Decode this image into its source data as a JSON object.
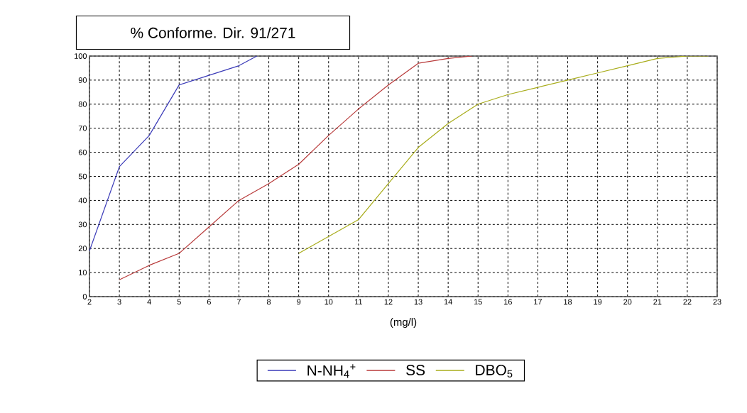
{
  "chart_data": {
    "type": "line",
    "title": "% Conforme. Dir. 91/271",
    "xlabel": "(mg/l)",
    "xlim": [
      2,
      23
    ],
    "xticks": [
      2,
      3,
      4,
      5,
      6,
      7,
      8,
      9,
      10,
      11,
      12,
      13,
      14,
      15,
      16,
      17,
      18,
      19,
      20,
      21,
      22,
      23
    ],
    "ylim": [
      0,
      100
    ],
    "yticks": [
      0,
      10,
      20,
      30,
      40,
      50,
      60,
      70,
      80,
      90,
      100
    ],
    "grid": true,
    "legend": "bottom",
    "line_style": "solid",
    "marker": "none",
    "series": [
      {
        "name": "N-NH$_{4}$$^{+}$",
        "color": "#3a3ab8",
        "x": [
          2,
          3,
          4,
          5,
          6,
          7,
          7.6
        ],
        "values": [
          19,
          54,
          67,
          88,
          92,
          96,
          100
        ]
      },
      {
        "name": "SS",
        "color": "#b83a3a",
        "x": [
          3,
          4,
          5,
          6,
          7,
          8,
          9,
          10,
          11,
          12,
          13,
          14,
          14.8
        ],
        "values": [
          7,
          13,
          18,
          29,
          40,
          47,
          55,
          67,
          78,
          88,
          97,
          99,
          100
        ]
      },
      {
        "name": "DBO$_{5}$",
        "color": "#a8ac1a",
        "x": [
          9,
          10,
          11,
          12,
          13,
          14,
          15,
          16,
          17,
          18,
          19,
          20,
          21,
          22,
          22.7
        ],
        "values": [
          18,
          25,
          32,
          47,
          62,
          72,
          80,
          84,
          87,
          90,
          93,
          96,
          99,
          100,
          100
        ]
      }
    ]
  }
}
